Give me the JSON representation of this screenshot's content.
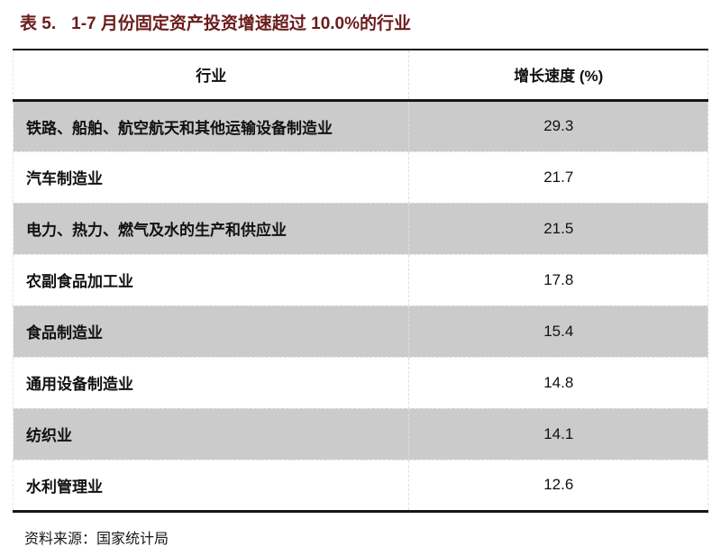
{
  "title": {
    "label": "表 5.",
    "text": "1-7 月份固定资产投资增速超过 10.0%的行业"
  },
  "table": {
    "headers": [
      "行业",
      "增长速度 (%)"
    ],
    "rows": [
      {
        "industry": "铁路、船舶、航空航天和其他运输设备制造业",
        "growth": "29.3"
      },
      {
        "industry": "汽车制造业",
        "growth": "21.7"
      },
      {
        "industry": "电力、热力、燃气及水的生产和供应业",
        "growth": "21.5"
      },
      {
        "industry": "农副食品加工业",
        "growth": "17.8"
      },
      {
        "industry": "食品制造业",
        "growth": "15.4"
      },
      {
        "industry": "通用设备制造业",
        "growth": "14.8"
      },
      {
        "industry": "纺织业",
        "growth": "14.1"
      },
      {
        "industry": "水利管理业",
        "growth": "12.6"
      }
    ]
  },
  "footer": {
    "source": "资料来源：国家统计局"
  },
  "colors": {
    "title-color": "#6b1b1b",
    "row-shade": "#cbcbcb",
    "rule-color": "#161616",
    "text-color": "#111111",
    "divider-color": "#dedede"
  }
}
